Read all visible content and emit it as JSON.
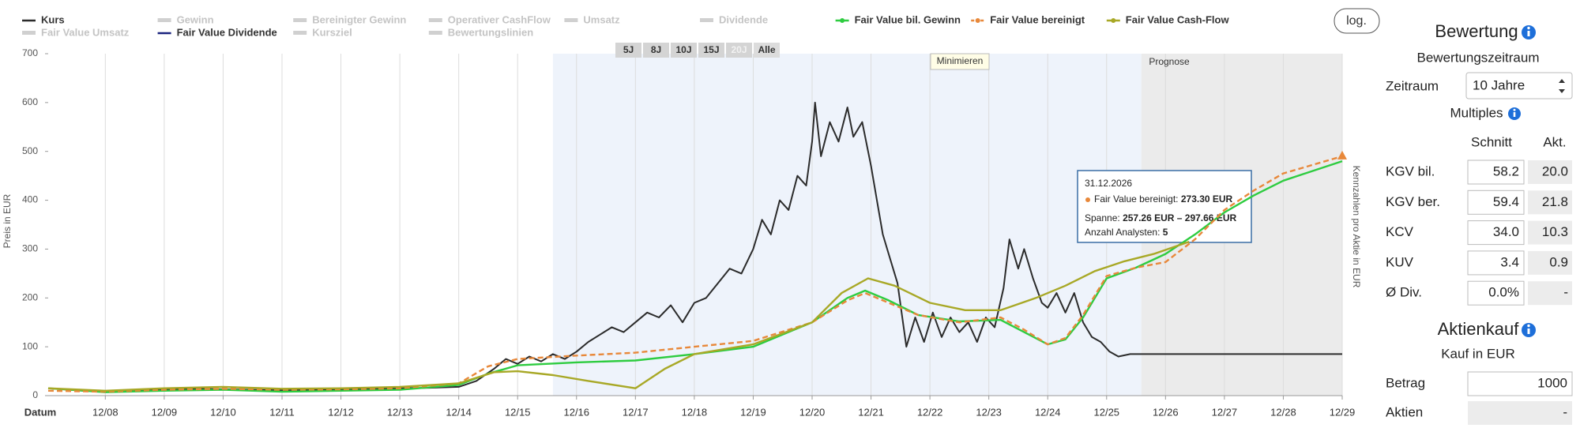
{
  "chart_data": {
    "type": "line",
    "y_label": "Preis in EUR",
    "y2_label": "Kennzahlen pro Aktie in EUR",
    "x_label": "Datum",
    "forecast_label": "Prognose",
    "minimize": "Minimieren",
    "log_button": "log.",
    "ranges": [
      "5J",
      "8J",
      "10J",
      "15J",
      "20J",
      "Alle"
    ],
    "highlight_range": [
      2016.6,
      2026.59
    ],
    "forecast_range": [
      2026.59,
      2030.0
    ],
    "xlim": [
      2008.03,
      2030.0
    ],
    "xticks": [
      {
        "value": 2009,
        "label": "12/08"
      },
      {
        "value": 2010,
        "label": "12/09"
      },
      {
        "value": 2011,
        "label": "12/10"
      },
      {
        "value": 2012,
        "label": "12/11"
      },
      {
        "value": 2013,
        "label": "12/12"
      },
      {
        "value": 2014,
        "label": "12/13"
      },
      {
        "value": 2015,
        "label": "12/14"
      },
      {
        "value": 2016,
        "label": "12/15"
      },
      {
        "value": 2017,
        "label": "12/16"
      },
      {
        "value": 2018,
        "label": "12/17"
      },
      {
        "value": 2019,
        "label": "12/18"
      },
      {
        "value": 2020,
        "label": "12/19"
      },
      {
        "value": 2021,
        "label": "12/20"
      },
      {
        "value": 2022,
        "label": "12/21"
      },
      {
        "value": 2023,
        "label": "12/22"
      },
      {
        "value": 2024,
        "label": "12/23"
      },
      {
        "value": 2025,
        "label": "12/24"
      },
      {
        "value": 2026,
        "label": "12/25"
      },
      {
        "value": 2027,
        "label": "12/26"
      },
      {
        "value": 2028,
        "label": "12/27"
      },
      {
        "value": 2029,
        "label": "12/28"
      },
      {
        "value": 2030,
        "label": "12/29"
      }
    ],
    "ylim": [
      0,
      700
    ],
    "yticks": [
      0,
      100,
      200,
      300,
      400,
      500,
      600,
      700
    ],
    "grid": true,
    "series": [
      {
        "name": "Kurs",
        "color": "#2b2b2b",
        "dash": false,
        "x": [
          2008.03,
          2008.3,
          2008.6,
          2009.0,
          2009.4,
          2009.8,
          2010.2,
          2010.6,
          2011.0,
          2011.5,
          2012.0,
          2012.5,
          2013.0,
          2013.5,
          2014.0,
          2014.5,
          2015.0,
          2015.3,
          2015.6,
          2015.8,
          2016.0,
          2016.2,
          2016.4,
          2016.6,
          2016.8,
          2017.0,
          2017.2,
          2017.4,
          2017.6,
          2017.8,
          2018.0,
          2018.2,
          2018.4,
          2018.6,
          2018.8,
          2019.0,
          2019.2,
          2019.4,
          2019.6,
          2019.8,
          2020.0,
          2020.15,
          2020.3,
          2020.45,
          2020.6,
          2020.75,
          2020.9,
          2021.0,
          2021.05,
          2021.15,
          2021.3,
          2021.45,
          2021.6,
          2021.7,
          2021.85,
          2022.0,
          2022.1,
          2022.2,
          2022.3,
          2022.45,
          2022.6,
          2022.75,
          2022.9,
          2023.05,
          2023.2,
          2023.35,
          2023.5,
          2023.65,
          2023.8,
          2023.95,
          2024.1,
          2024.25,
          2024.35,
          2024.5,
          2024.6,
          2024.75,
          2024.9,
          2025.0,
          2025.15,
          2025.3,
          2025.45,
          2025.6,
          2025.75,
          2025.9,
          2026.05,
          2026.2,
          2026.4,
          2026.55,
          2030.0
        ],
        "values": [
          15,
          13,
          10,
          8,
          10,
          12,
          13,
          14,
          13,
          12,
          11,
          12,
          13,
          14,
          15,
          16,
          18,
          30,
          55,
          75,
          65,
          80,
          70,
          85,
          75,
          90,
          110,
          125,
          140,
          130,
          150,
          170,
          160,
          185,
          150,
          190,
          200,
          230,
          260,
          250,
          300,
          360,
          330,
          400,
          380,
          450,
          430,
          520,
          600,
          490,
          560,
          520,
          590,
          530,
          560,
          470,
          400,
          330,
          290,
          230,
          100,
          160,
          110,
          170,
          120,
          160,
          130,
          150,
          110,
          160,
          140,
          220,
          320,
          260,
          300,
          240,
          190,
          180,
          210,
          170,
          210,
          150,
          120,
          110,
          90,
          80,
          85,
          85,
          85
        ]
      },
      {
        "name": "Fair Value bil. Gewinn",
        "color": "#2ecc40",
        "dash": false,
        "x": [
          2008.03,
          2009,
          2010,
          2011,
          2012,
          2013,
          2014,
          2015,
          2015.5,
          2016,
          2017,
          2018,
          2019,
          2020,
          2021,
          2021.6,
          2021.9,
          2022.3,
          2022.8,
          2023.5,
          2024.2,
          2024.6,
          2025.0,
          2025.3,
          2025.6,
          2026.0,
          2026.5,
          2027.0,
          2027.5,
          2028,
          2028.5,
          2029,
          2030
        ],
        "values": [
          15,
          7,
          10,
          12,
          8,
          10,
          12,
          22,
          45,
          62,
          68,
          72,
          85,
          100,
          150,
          200,
          215,
          195,
          165,
          152,
          155,
          130,
          105,
          115,
          160,
          240,
          262,
          290,
          330,
          375,
          410,
          440,
          480
        ]
      },
      {
        "name": "Fair Value bereinigt",
        "color": "#e8883a",
        "dash": true,
        "x": [
          2008.03,
          2009,
          2010,
          2011,
          2012,
          2013,
          2014,
          2015,
          2015.5,
          2016,
          2017,
          2018,
          2019,
          2020,
          2021,
          2021.6,
          2021.9,
          2022.3,
          2022.8,
          2023.5,
          2024.2,
          2024.6,
          2025.0,
          2025.3,
          2025.6,
          2026.0,
          2026.5,
          2027.0,
          2027.5,
          2028,
          2028.5,
          2029,
          2030
        ],
        "values": [
          10,
          8,
          12,
          14,
          12,
          13,
          15,
          25,
          60,
          75,
          82,
          88,
          100,
          112,
          150,
          195,
          210,
          190,
          165,
          150,
          160,
          135,
          105,
          118,
          165,
          245,
          262,
          273.3,
          320,
          380,
          420,
          455,
          490
        ]
      },
      {
        "name": "Fair Value Cash-Flow",
        "color": "#a8a826",
        "dash": false,
        "x": [
          2008.03,
          2009,
          2010,
          2011,
          2012,
          2013,
          2014,
          2015,
          2015.6,
          2016,
          2016.6,
          2017.2,
          2018.0,
          2018.5,
          2019,
          2020,
          2021,
          2021.5,
          2021.95,
          2022.4,
          2023.0,
          2023.6,
          2024.2,
          2024.8,
          2025.3,
          2025.8,
          2026.3,
          2026.8,
          2027.4
        ],
        "values": [
          15,
          10,
          15,
          18,
          14,
          15,
          18,
          25,
          48,
          50,
          42,
          30,
          15,
          55,
          85,
          105,
          150,
          210,
          240,
          225,
          190,
          175,
          175,
          200,
          225,
          255,
          275,
          290,
          315
        ]
      }
    ],
    "legend_inactive": [
      "Gewinn",
      "Bereinigter Gewinn",
      "Operativer CashFlow",
      "Umsatz",
      "Dividende",
      "Fair Value Umsatz",
      "Kursziel",
      "Bewertungslinien"
    ],
    "legend_extra": [
      {
        "name": "Fair Value Dividende",
        "color": "#1a237e"
      }
    ],
    "tooltip": {
      "date": "31.12.2026",
      "series": "Fair Value bereinigt:",
      "value": "273.30 EUR",
      "range_label": "Spanne:",
      "range": "257.26 EUR – 297.66 EUR",
      "analysts_label": "Anzahl Analysten:",
      "analysts": "5"
    }
  },
  "panel": {
    "title": "Bewertung",
    "subtitle": "Bewertungszeitraum",
    "period_label": "Zeitraum",
    "period": "10 Jahre",
    "multiples": "Multiples",
    "col_avg": "Schnitt",
    "col_cur": "Akt.",
    "rows": [
      [
        "KGV bil.",
        "58.2",
        "20.0"
      ],
      [
        "KGV ber.",
        "59.4",
        "21.8"
      ],
      [
        "KCV",
        "34.0",
        "10.3"
      ],
      [
        "KUV",
        "3.4",
        "0.9"
      ],
      [
        "Ø Div.",
        "0.0%",
        "-"
      ]
    ],
    "buy_title": "Aktienkauf",
    "buy_subtitle": "Kauf in EUR",
    "amount_label": "Betrag",
    "amount": "1000",
    "shares_label": "Aktien",
    "shares": "-"
  }
}
